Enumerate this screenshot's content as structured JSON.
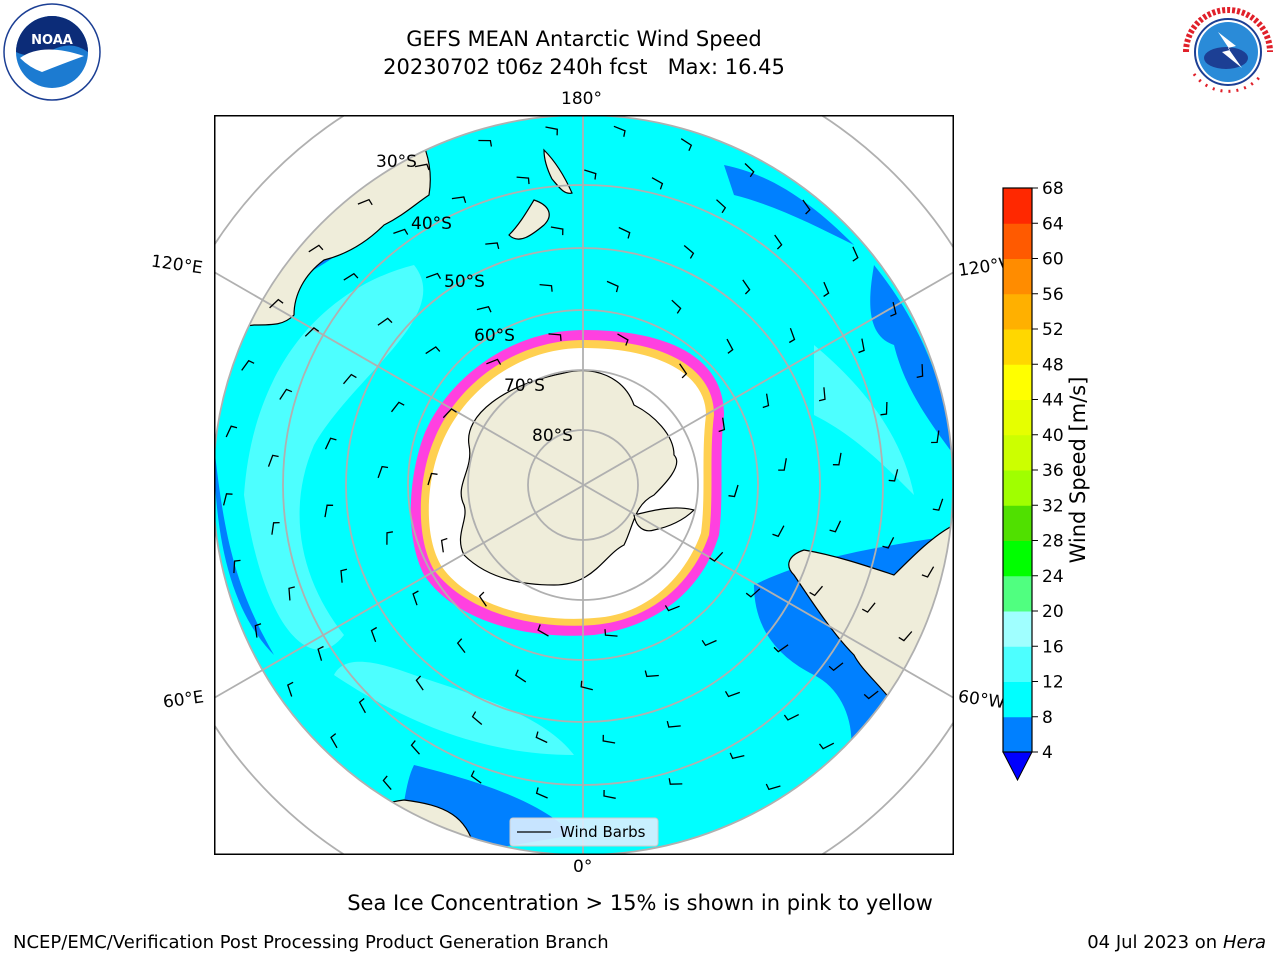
{
  "header": {
    "title_line1": "GEFS MEAN Antarctic Wind Speed",
    "title_line2": "20230702 t06z 240h fcst   Max: 16.45"
  },
  "logos": {
    "left": "noaa-logo",
    "right": "national-weather-service-logo",
    "right_text": "NATIONAL WEATHER SERVICE"
  },
  "map": {
    "projection": "south-polar-stereographic",
    "longitude_labels": {
      "top": "180°",
      "bottom": "0°",
      "upper_left": "120°E",
      "upper_right": "120°W",
      "lower_left": "60°E",
      "lower_right": "60°W"
    },
    "latitude_labels": [
      "30°S",
      "40°S",
      "50°S",
      "60°S",
      "70°S",
      "80°S"
    ],
    "legend_label": "Wind Barbs",
    "colors": {
      "land": "#efedda",
      "ocean_8_12": "#00ffff",
      "ocean_12_16": "#4dffff",
      "ocean_4_8": "#0080ff",
      "ice_pink": "#ff40e0",
      "ice_yellow": "#ffd050",
      "grid": "#b0b0b0"
    }
  },
  "colorbar": {
    "label": "Wind Speed [m/s]",
    "ticks": [
      "4",
      "8",
      "12",
      "16",
      "20",
      "24",
      "28",
      "32",
      "36",
      "40",
      "44",
      "48",
      "52",
      "56",
      "60",
      "64",
      "68"
    ],
    "colors": [
      "#0080ff",
      "#00ffff",
      "#4dffff",
      "#a0ffff",
      "#50ff80",
      "#00ff00",
      "#50e000",
      "#a0ff00",
      "#ccff00",
      "#e6ff00",
      "#ffff00",
      "#ffd700",
      "#ffb000",
      "#ff8c00",
      "#ff5a00",
      "#ff2800"
    ],
    "extend_color": "#0000ff"
  },
  "caption": "Sea Ice Concentration > 15% is shown in pink to yellow",
  "footer": {
    "left": "NCEP/EMC/Verification Post Processing Product Generation Branch",
    "right_date": "04 Jul 2023 on ",
    "right_machine": "Hera"
  }
}
